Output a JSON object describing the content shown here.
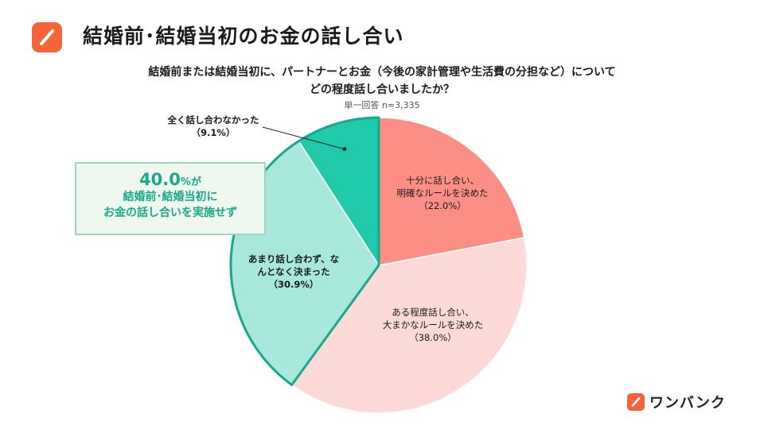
{
  "header": {
    "title": "結婚前･結婚当初のお金の話し合い"
  },
  "chart_data": {
    "type": "pie",
    "title_line1": "結婚前または結婚当初に、パートナーとお金（今後の家計管理や生活費の分担など）について",
    "title_line2": "どの程度話し合いましたか？",
    "sample": "単一回答 n=3,335",
    "slices": [
      {
        "name_line1": "十分に話し合い、",
        "name_line2": "明確なルールを決めた",
        "percent_label": "（22.0%）",
        "value": 22.0,
        "color": "#fc8f85"
      },
      {
        "name_line1": "ある程度話し合い、",
        "name_line2": "大まかなルールを決めた",
        "percent_label": "（38.0%）",
        "value": 38.0,
        "color": "#fddad8"
      },
      {
        "name_line1": "あまり話し合わず、な",
        "name_line2": "んとなく決まった",
        "percent_label": "（30.9%）",
        "value": 30.9,
        "color": "#a8e8dc"
      },
      {
        "name_line1": "全く話し合わなかった",
        "name_line2": "",
        "percent_label": "（9.1%）",
        "value": 9.1,
        "color": "#20c9a9"
      }
    ]
  },
  "callout": {
    "value": "40.0",
    "suffix": "%が",
    "line1": "結婚前･結婚当初に",
    "line2": "お金の話し合いを実施せず",
    "color": "#1aa88a"
  },
  "brand": {
    "name": "ワンバンク"
  }
}
